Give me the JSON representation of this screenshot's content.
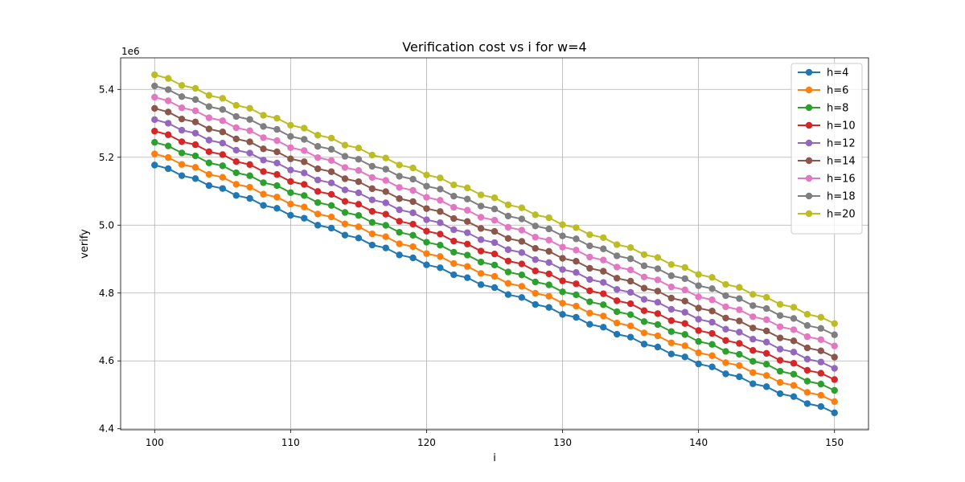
{
  "chart_data": {
    "type": "line",
    "title": "Verification cost vs i for w=4",
    "xlabel": "i",
    "ylabel": "verify",
    "y_offset_label": "1e6",
    "xlim": [
      97.5,
      152.5
    ],
    "ylim": [
      4.397,
      5.493
    ],
    "x_ticks": [
      100,
      110,
      120,
      130,
      140,
      150
    ],
    "x_tick_labels": [
      "100",
      "110",
      "120",
      "130",
      "140",
      "150"
    ],
    "y_ticks": [
      4.4,
      4.6,
      4.8,
      5.0,
      5.2,
      5.4
    ],
    "y_tick_labels": [
      "4.4",
      "4.6",
      "4.8",
      "5.0",
      "5.2",
      "5.4"
    ],
    "grid": true,
    "legend_position": "top-right",
    "marker": "circle",
    "x_start": 100,
    "x_end": 150,
    "x_step": 1,
    "series": [
      {
        "name": "h=4",
        "color": "#1f77b4",
        "y_start": 5.177,
        "y_end": 4.447
      },
      {
        "name": "h=6",
        "color": "#ff7f0e",
        "y_start": 5.21,
        "y_end": 4.48
      },
      {
        "name": "h=8",
        "color": "#2ca02c",
        "y_start": 5.244,
        "y_end": 4.513
      },
      {
        "name": "h=10",
        "color": "#d62728",
        "y_start": 5.277,
        "y_end": 4.545
      },
      {
        "name": "h=12",
        "color": "#9467bd",
        "y_start": 5.311,
        "y_end": 4.578
      },
      {
        "name": "h=14",
        "color": "#8c564b",
        "y_start": 5.344,
        "y_end": 4.611
      },
      {
        "name": "h=16",
        "color": "#e377c2",
        "y_start": 5.377,
        "y_end": 4.644
      },
      {
        "name": "h=18",
        "color": "#7f7f7f",
        "y_start": 5.41,
        "y_end": 4.677
      },
      {
        "name": "h=20",
        "color": "#bcbd22",
        "y_start": 5.443,
        "y_end": 4.71
      }
    ]
  }
}
